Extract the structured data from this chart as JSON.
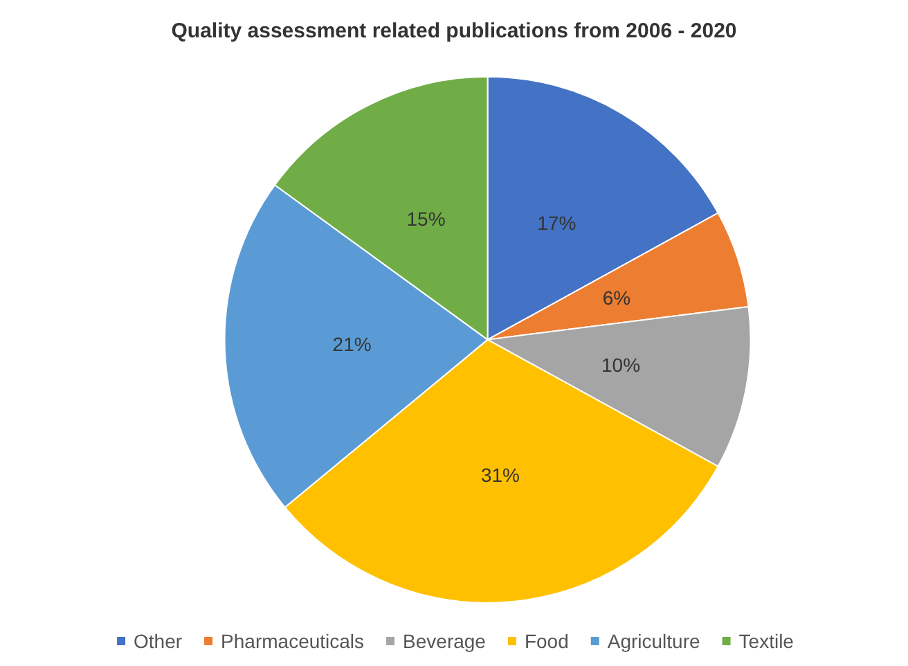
{
  "chart_data": {
    "type": "pie",
    "title": "Quality assessment related publications from 2006 - 2020",
    "categories": [
      "Other",
      "Pharmaceuticals",
      "Beverage",
      "Food",
      "Agriculture",
      "Textile"
    ],
    "values": [
      17,
      6,
      10,
      31,
      21,
      15
    ],
    "colors": [
      "#4472c4",
      "#ed7d31",
      "#a5a5a5",
      "#ffc000",
      "#5b9bd5",
      "#70ad47"
    ],
    "value_labels": [
      "17%",
      "6%",
      "10%",
      "31%",
      "21%",
      "15%"
    ],
    "legend": "bottom"
  }
}
